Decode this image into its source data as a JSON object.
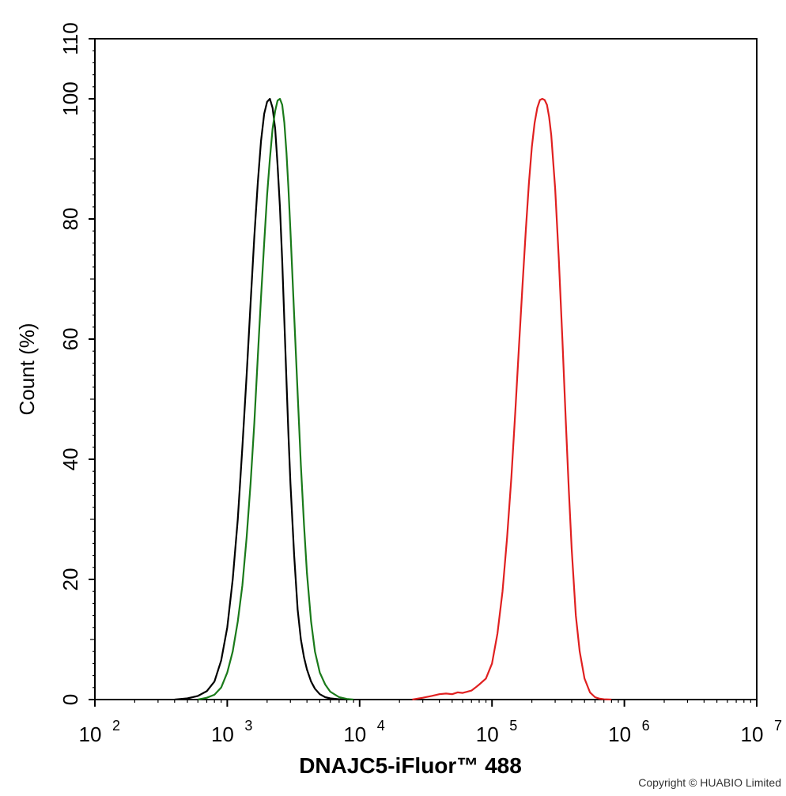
{
  "chart_data": {
    "type": "line",
    "title": "",
    "xlabel": "DNAJC5-iFluor™ 488",
    "ylabel": "Count  (%)",
    "x_scale": "log10",
    "xlim": [
      100,
      10000000
    ],
    "ylim": [
      0,
      110
    ],
    "x_ticks": [
      {
        "base": "10",
        "exp": "2",
        "value": 100
      },
      {
        "base": "10",
        "exp": "3",
        "value": 1000
      },
      {
        "base": "10",
        "exp": "4",
        "value": 10000
      },
      {
        "base": "10",
        "exp": "5",
        "value": 100000
      },
      {
        "base": "10",
        "exp": "6",
        "value": 1000000
      },
      {
        "base": "10",
        "exp": "7",
        "value": 10000000
      }
    ],
    "y_ticks": [
      "0",
      "20",
      "40",
      "60",
      "80",
      "100",
      "110"
    ],
    "grid": false,
    "series": [
      {
        "color": "#000000",
        "x": [
          400,
          500,
          600,
          700,
          800,
          900,
          1000,
          1100,
          1200,
          1300,
          1400,
          1500,
          1600,
          1700,
          1800,
          1900,
          2000,
          2100,
          2200,
          2300,
          2400,
          2500,
          2600,
          2700,
          2800,
          2900,
          3000,
          3200,
          3400,
          3600,
          3800,
          4000,
          4300,
          4600,
          5000,
          5500,
          6000,
          7000,
          8000
        ],
        "y": [
          0,
          0.2,
          0.6,
          1.4,
          3,
          6.5,
          12,
          20,
          30,
          42,
          54,
          66,
          77,
          86,
          93,
          97.5,
          99.5,
          100,
          98.5,
          95,
          89,
          82,
          73,
          63,
          53,
          44,
          36,
          24,
          15,
          10,
          7,
          5,
          3,
          1.8,
          0.9,
          0.4,
          0.2,
          0.05,
          0
        ]
      },
      {
        "color": "#1a7a1a",
        "x": [
          600,
          700,
          800,
          900,
          1000,
          1100,
          1200,
          1300,
          1400,
          1500,
          1600,
          1700,
          1800,
          1900,
          2000,
          2100,
          2200,
          2300,
          2400,
          2500,
          2600,
          2700,
          2800,
          2900,
          3000,
          3200,
          3400,
          3600,
          3800,
          4000,
          4300,
          4600,
          5000,
          5500,
          6000,
          7000,
          8000,
          9000
        ],
        "y": [
          0,
          0.3,
          0.8,
          2,
          4.5,
          8,
          13,
          19,
          27,
          36,
          46,
          57,
          67,
          76,
          84,
          90,
          95,
          98,
          99.7,
          100,
          99,
          96,
          91,
          85,
          78,
          64,
          51,
          39,
          29,
          21,
          13,
          8,
          4.5,
          2.5,
          1.3,
          0.4,
          0.1,
          0
        ]
      },
      {
        "color": "#e02020",
        "x": [
          25000,
          30000,
          35000,
          40000,
          45000,
          50000,
          55000,
          60000,
          65000,
          70000,
          75000,
          80000,
          90000,
          100000,
          110000,
          120000,
          130000,
          140000,
          150000,
          160000,
          170000,
          180000,
          190000,
          200000,
          210000,
          220000,
          230000,
          240000,
          250000,
          260000,
          270000,
          280000,
          300000,
          320000,
          340000,
          360000,
          380000,
          400000,
          430000,
          460000,
          500000,
          550000,
          600000,
          650000,
          700000,
          800000
        ],
        "y": [
          0,
          0.3,
          0.6,
          0.9,
          1.0,
          0.9,
          1.2,
          1.1,
          1.3,
          1.5,
          2.0,
          2.5,
          3.5,
          6,
          11,
          18,
          27,
          37,
          48,
          59,
          69,
          78,
          86,
          92,
          96,
          98.5,
          99.8,
          100,
          99.8,
          99,
          97,
          94,
          85,
          73,
          60,
          47,
          35,
          25,
          14,
          8,
          3.5,
          1.2,
          0.4,
          0.15,
          0.05,
          0
        ]
      }
    ]
  },
  "footer": {
    "copyright": "Copyright © HUABIO Limited"
  }
}
